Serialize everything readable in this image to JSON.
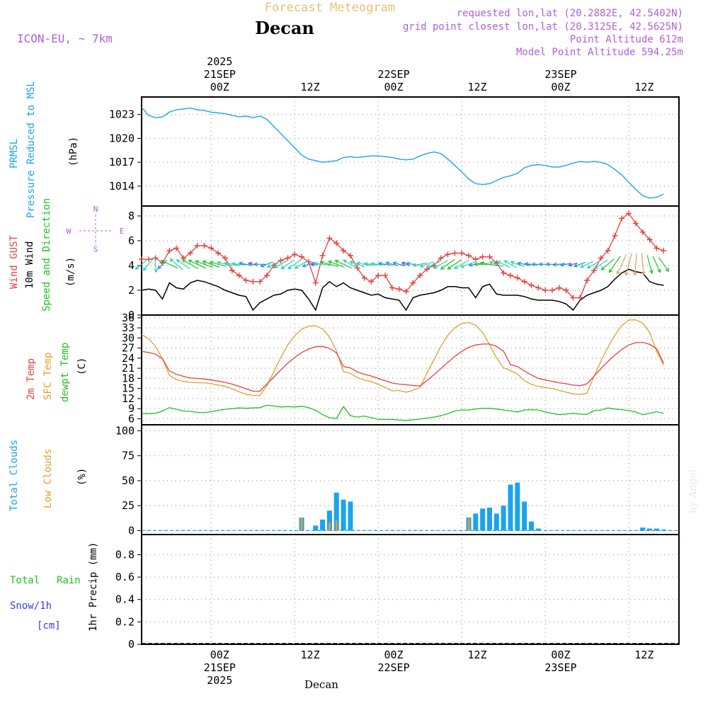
{
  "header": {
    "title": "Forecast Meteogram",
    "location": "Decan",
    "model": "ICON-EU, ~ 7km",
    "requested": "requested lon,lat (20.2882E, 42.5402N)",
    "gridpoint": "grid point closest lon,lat (20.3125E, 42.5625N)",
    "point_alt": "Point Altitude 612m",
    "model_alt": "Model Point Altitude 594.25m",
    "footer": "Decan",
    "watermark": "by Angel"
  },
  "colors": {
    "pressure": "#1aa3f0",
    "gust": "#e84040",
    "wind": "#000000",
    "direction": "#22c022",
    "t2m": "#e84040",
    "sfc": "#e0a030",
    "dewpt": "#22c022",
    "totalcloud": "#1aa3f0",
    "lowcloud": "#e0a030",
    "rain": "#22c022",
    "snow": "#3a3ae8",
    "header_purple": "#b060d8"
  },
  "time_axis": {
    "top": [
      {
        "h": -1,
        "lines": [
          "2025",
          "21SEP",
          "00Z"
        ]
      },
      {
        "h": 12,
        "lines": [
          "12Z"
        ]
      },
      {
        "h": 24,
        "lines": [
          "22SEP",
          "00Z"
        ]
      },
      {
        "h": 36,
        "lines": [
          "12Z"
        ]
      },
      {
        "h": 48,
        "lines": [
          "23SEP",
          "00Z"
        ]
      },
      {
        "h": 60,
        "lines": [
          "12Z"
        ]
      }
    ],
    "bottom": [
      {
        "h": -1,
        "lines": [
          "00Z",
          "21SEP",
          "2025"
        ]
      },
      {
        "h": 12,
        "lines": [
          "12Z"
        ]
      },
      {
        "h": 24,
        "lines": [
          "00Z",
          "22SEP"
        ]
      },
      {
        "h": 36,
        "lines": [
          "12Z"
        ]
      },
      {
        "h": 48,
        "lines": [
          "00Z",
          "23SEP"
        ]
      },
      {
        "h": 60,
        "lines": [
          "12Z"
        ]
      }
    ]
  },
  "panels": {
    "pressure": {
      "labels": [
        "PRMSL",
        "Pressure Reduced to MSL"
      ],
      "unit": "(hPa)"
    },
    "wind": {
      "labels": [
        "Wind GUST",
        "10m Wind",
        "Speed and Direction"
      ],
      "unit": "(m/s)",
      "compass": [
        "N",
        "W",
        "E",
        "S"
      ]
    },
    "temp": {
      "labels": [
        "2m Temp",
        "SFC Temp",
        "dewpt Temp"
      ],
      "unit": "(C)"
    },
    "clouds": {
      "labels": [
        "Total Clouds",
        "Low Clouds"
      ],
      "unit": "(%)"
    },
    "precip": {
      "labels": [
        "Total",
        "Rain",
        "Snow/1h",
        "[cm]"
      ],
      "unit": "1hr Precip (mm)"
    }
  },
  "chart_data": [
    {
      "type": "line",
      "title": "PRMSL Pressure Reduced to MSL",
      "ylabel": "hPa",
      "yticks": [
        1014,
        1017,
        1020,
        1023
      ],
      "ylim": [
        1011.5,
        1025.2
      ],
      "x": [
        -11,
        -10,
        -9,
        -8,
        -7,
        -6,
        -5,
        -4,
        -3,
        -2,
        -1,
        0,
        1,
        2,
        3,
        4,
        5,
        6,
        7,
        8,
        9,
        10,
        11,
        12,
        13,
        14,
        15,
        16,
        17,
        18,
        19,
        20,
        21,
        22,
        23,
        24,
        25,
        26,
        27,
        28,
        29,
        30,
        31,
        32,
        33,
        34,
        35,
        36,
        37,
        38,
        39,
        40,
        41,
        42,
        43,
        44,
        45,
        46,
        47,
        48,
        49,
        50,
        51,
        52,
        53,
        54,
        55,
        56,
        57,
        58,
        59,
        60,
        61,
        62,
        63,
        64
      ],
      "series": [
        {
          "name": "PRMSL",
          "values": [
            1023.9,
            1022.9,
            1022.6,
            1022.7,
            1023.3,
            1023.6,
            1023.7,
            1023.8,
            1023.6,
            1023.5,
            1023.3,
            1023.2,
            1023.1,
            1022.9,
            1022.7,
            1022.8,
            1022.6,
            1022.8,
            1022.4,
            1021.5,
            1020.6,
            1019.7,
            1018.8,
            1017.9,
            1017.4,
            1017.2,
            1017.0,
            1017.1,
            1017.2,
            1017.6,
            1017.7,
            1017.6,
            1017.7,
            1017.8,
            1017.8,
            1017.7,
            1017.6,
            1017.4,
            1017.3,
            1017.4,
            1017.8,
            1018.1,
            1018.3,
            1018.1,
            1017.4,
            1016.6,
            1015.8,
            1014.9,
            1014.3,
            1014.2,
            1014.3,
            1014.7,
            1015.1,
            1015.3,
            1015.6,
            1016.3,
            1016.6,
            1016.7,
            1016.6,
            1016.4,
            1016.4,
            1016.6,
            1016.9,
            1017.1,
            1017.0,
            1017.1,
            1017.0,
            1016.7,
            1016.1,
            1015.4,
            1014.5,
            1013.6,
            1012.8,
            1012.5,
            1012.6,
            1013.0
          ]
        }
      ]
    },
    {
      "type": "line",
      "title": "Wind GUST / 10m Wind Speed and Direction",
      "ylabel": "m/s",
      "yticks": [
        0,
        2,
        4,
        6,
        8
      ],
      "ylim": [
        0,
        8.8
      ],
      "x": [
        -11,
        -10,
        -9,
        -8,
        -7,
        -6,
        -5,
        -4,
        -3,
        -2,
        -1,
        0,
        1,
        2,
        3,
        4,
        5,
        6,
        7,
        8,
        9,
        10,
        11,
        12,
        13,
        14,
        15,
        16,
        17,
        18,
        19,
        20,
        21,
        22,
        23,
        24,
        25,
        26,
        27,
        28,
        29,
        30,
        31,
        32,
        33,
        34,
        35,
        36,
        37,
        38,
        39,
        40,
        41,
        42,
        43,
        44,
        45,
        46,
        47,
        48,
        49,
        50,
        51,
        52,
        53,
        54,
        55,
        56,
        57,
        58,
        59,
        60,
        61,
        62,
        63,
        64
      ],
      "series": [
        {
          "name": "Wind GUST",
          "values": [
            4.5,
            4.5,
            4.6,
            4.2,
            5.2,
            5.4,
            4.6,
            5.0,
            5.6,
            5.6,
            5.4,
            5.0,
            4.6,
            3.6,
            3.2,
            2.8,
            2.7,
            2.7,
            3.2,
            4.0,
            4.4,
            4.6,
            4.9,
            4.7,
            4.3,
            2.6,
            4.8,
            6.2,
            5.8,
            5.2,
            4.8,
            3.8,
            3.0,
            2.7,
            3.2,
            3.2,
            2.2,
            2.1,
            1.9,
            2.6,
            3.2,
            3.7,
            4.0,
            4.6,
            4.9,
            5.0,
            5.0,
            4.8,
            4.5,
            4.7,
            4.7,
            4.2,
            3.4,
            3.2,
            3.0,
            2.7,
            2.4,
            2.2,
            2.0,
            2.0,
            2.2,
            2.0,
            1.4,
            1.4,
            2.8,
            3.6,
            4.6,
            5.2,
            6.4,
            7.8,
            8.2,
            7.4,
            6.7,
            6.1,
            5.4,
            5.2
          ]
        },
        {
          "name": "10m Wind",
          "values": [
            2.0,
            2.1,
            2.0,
            1.3,
            2.6,
            2.2,
            2.1,
            2.6,
            2.8,
            2.7,
            2.5,
            2.3,
            2.0,
            1.8,
            1.6,
            1.5,
            0.4,
            1.0,
            1.3,
            1.6,
            1.7,
            2.0,
            2.1,
            2.0,
            1.3,
            0.4,
            2.2,
            2.7,
            2.3,
            2.6,
            2.2,
            2.0,
            1.8,
            1.6,
            1.7,
            1.4,
            1.3,
            1.2,
            0.4,
            1.4,
            1.6,
            1.7,
            1.8,
            2.0,
            2.3,
            2.3,
            2.2,
            2.2,
            1.4,
            2.3,
            2.5,
            1.7,
            1.6,
            1.6,
            1.6,
            1.5,
            1.3,
            1.2,
            1.2,
            1.2,
            1.1,
            0.9,
            0.4,
            1.2,
            1.6,
            1.8,
            2.0,
            2.3,
            2.9,
            3.4,
            3.7,
            3.5,
            3.4,
            2.7,
            2.5,
            2.4
          ]
        }
      ]
    },
    {
      "type": "line",
      "title": "2m Temp / SFC Temp / dewpt Temp",
      "ylabel": "C",
      "yticks": [
        6,
        9,
        12,
        15,
        18,
        21,
        24,
        27,
        30,
        33,
        36
      ],
      "ylim": [
        4.2,
        36.8
      ],
      "x": [
        -11,
        -10,
        -9,
        -8,
        -7,
        -6,
        -5,
        -4,
        -3,
        -2,
        -1,
        0,
        1,
        2,
        3,
        4,
        5,
        6,
        7,
        8,
        9,
        10,
        11,
        12,
        13,
        14,
        15,
        16,
        17,
        18,
        19,
        20,
        21,
        22,
        23,
        24,
        25,
        26,
        27,
        28,
        29,
        30,
        31,
        32,
        33,
        34,
        35,
        36,
        37,
        38,
        39,
        40,
        41,
        42,
        43,
        44,
        45,
        46,
        47,
        48,
        49,
        50,
        51,
        52,
        53,
        54,
        55,
        56,
        57,
        58,
        59,
        60,
        61,
        62,
        63,
        64
      ],
      "series": [
        {
          "name": "2m Temp",
          "values": [
            26.0,
            25.7,
            25.2,
            23.8,
            20.2,
            19.2,
            18.6,
            18.1,
            18.0,
            17.8,
            17.5,
            17.2,
            16.8,
            16.3,
            15.6,
            14.9,
            14.2,
            14.2,
            16.3,
            18.4,
            20.5,
            22.5,
            24.2,
            25.7,
            26.7,
            27.4,
            27.5,
            26.9,
            25.6,
            21.5,
            21.1,
            19.9,
            19.2,
            18.7,
            18.0,
            17.3,
            16.6,
            16.3,
            16.1,
            15.9,
            15.7,
            17.3,
            19.1,
            20.9,
            22.8,
            24.5,
            26.0,
            27.2,
            27.9,
            28.2,
            28.2,
            27.5,
            26.1,
            22.1,
            21.5,
            20.2,
            19.0,
            18.0,
            17.5,
            17.1,
            16.7,
            16.4,
            16.0,
            15.8,
            16.4,
            18.6,
            20.9,
            23.0,
            24.9,
            26.6,
            27.9,
            28.6,
            28.7,
            28.1,
            26.8,
            22.5
          ]
        },
        {
          "name": "SFC Temp",
          "values": [
            31.0,
            29.8,
            27.5,
            23.8,
            18.9,
            17.6,
            17.1,
            16.8,
            16.7,
            16.7,
            16.4,
            16.0,
            15.6,
            14.9,
            14.0,
            13.3,
            12.9,
            12.9,
            15.8,
            20.0,
            24.2,
            27.9,
            30.7,
            32.6,
            33.5,
            33.6,
            32.7,
            30.3,
            26.2,
            20.0,
            19.5,
            18.2,
            17.5,
            17.0,
            16.2,
            15.3,
            14.3,
            14.4,
            13.9,
            14.4,
            15.3,
            19.5,
            23.6,
            27.5,
            30.8,
            33.0,
            34.3,
            34.6,
            33.8,
            31.6,
            28.0,
            24.1,
            21.1,
            20.3,
            19.3,
            17.3,
            16.2,
            15.6,
            15.3,
            15.0,
            14.4,
            13.9,
            13.4,
            13.2,
            13.6,
            18.6,
            23.1,
            27.2,
            30.8,
            33.7,
            35.3,
            35.4,
            34.4,
            31.6,
            26.0,
            21.9
          ]
        },
        {
          "name": "dewpt Temp",
          "values": [
            7.6,
            7.5,
            7.6,
            8.3,
            9.3,
            8.8,
            8.3,
            8.2,
            7.9,
            7.8,
            8.1,
            8.5,
            8.8,
            9.0,
            9.2,
            9.1,
            9.2,
            9.3,
            10.0,
            9.8,
            9.5,
            9.6,
            9.5,
            9.7,
            9.3,
            8.5,
            7.2,
            6.3,
            6.1,
            9.6,
            6.9,
            6.5,
            6.8,
            6.3,
            5.8,
            5.8,
            5.8,
            5.6,
            5.5,
            5.7,
            5.9,
            6.2,
            6.5,
            6.9,
            7.5,
            8.3,
            8.6,
            8.6,
            8.9,
            9.1,
            9.1,
            8.9,
            8.6,
            8.3,
            8.0,
            8.6,
            8.7,
            8.6,
            8.0,
            7.6,
            7.2,
            7.4,
            7.6,
            7.4,
            7.3,
            8.4,
            8.6,
            9.2,
            8.9,
            8.7,
            8.4,
            8.0,
            7.2,
            7.6,
            8.1,
            7.6
          ]
        }
      ]
    },
    {
      "type": "bar",
      "title": "Total Clouds / Low Clouds",
      "ylabel": "%",
      "yticks": [
        0,
        25,
        50,
        75,
        100
      ],
      "ylim": [
        -4,
        106
      ],
      "x": [
        12,
        14,
        15,
        16,
        17,
        18,
        19,
        36,
        37,
        38,
        39,
        40,
        41,
        42,
        43,
        44,
        45,
        46,
        61,
        62,
        63,
        64
      ],
      "series": [
        {
          "name": "Total Clouds",
          "values": [
            13,
            5,
            11,
            20,
            38,
            31,
            29,
            13,
            17,
            22,
            23,
            17,
            25,
            46,
            48,
            29,
            9,
            2,
            3,
            2,
            2,
            1
          ]
        },
        {
          "name": "Low Clouds",
          "values": [
            13,
            0,
            0,
            8,
            10,
            0,
            0,
            12,
            0,
            0,
            0,
            0,
            0,
            0,
            0,
            0,
            0,
            0,
            0,
            0,
            0,
            0
          ]
        }
      ]
    },
    {
      "type": "line",
      "title": "1hr Precip",
      "ylabel": "1hr Precip (mm)",
      "yticks": [
        0,
        0.2,
        0.4,
        0.6,
        0.8
      ],
      "ylim": [
        0,
        0.98
      ],
      "x": [
        -11,
        64
      ],
      "series": [
        {
          "name": "Total Rain",
          "values": [
            0,
            0
          ]
        },
        {
          "name": "Snow/1h",
          "values": [
            0,
            0
          ]
        }
      ]
    }
  ],
  "wind_direction_note": "arrows every hour, length encodes 10m wind speed",
  "wind_directions_deg": [
    50,
    40,
    355,
    45,
    115,
    130,
    125,
    120,
    115,
    110,
    110,
    105,
    105,
    100,
    95,
    100,
    105,
    90,
    70,
    65,
    60,
    55,
    55,
    60,
    70,
    85,
    95,
    105,
    110,
    115,
    120,
    110,
    100,
    95,
    95,
    100,
    105,
    105,
    110,
    100,
    80,
    70,
    65,
    60,
    55,
    55,
    60,
    70,
    80,
    90,
    100,
    110,
    115,
    120,
    110,
    100,
    95,
    90,
    90,
    90,
    85,
    80,
    75,
    70,
    65,
    60,
    55,
    50,
    35,
    25,
    15,
    5,
    355,
    345,
    335,
    325
  ]
}
